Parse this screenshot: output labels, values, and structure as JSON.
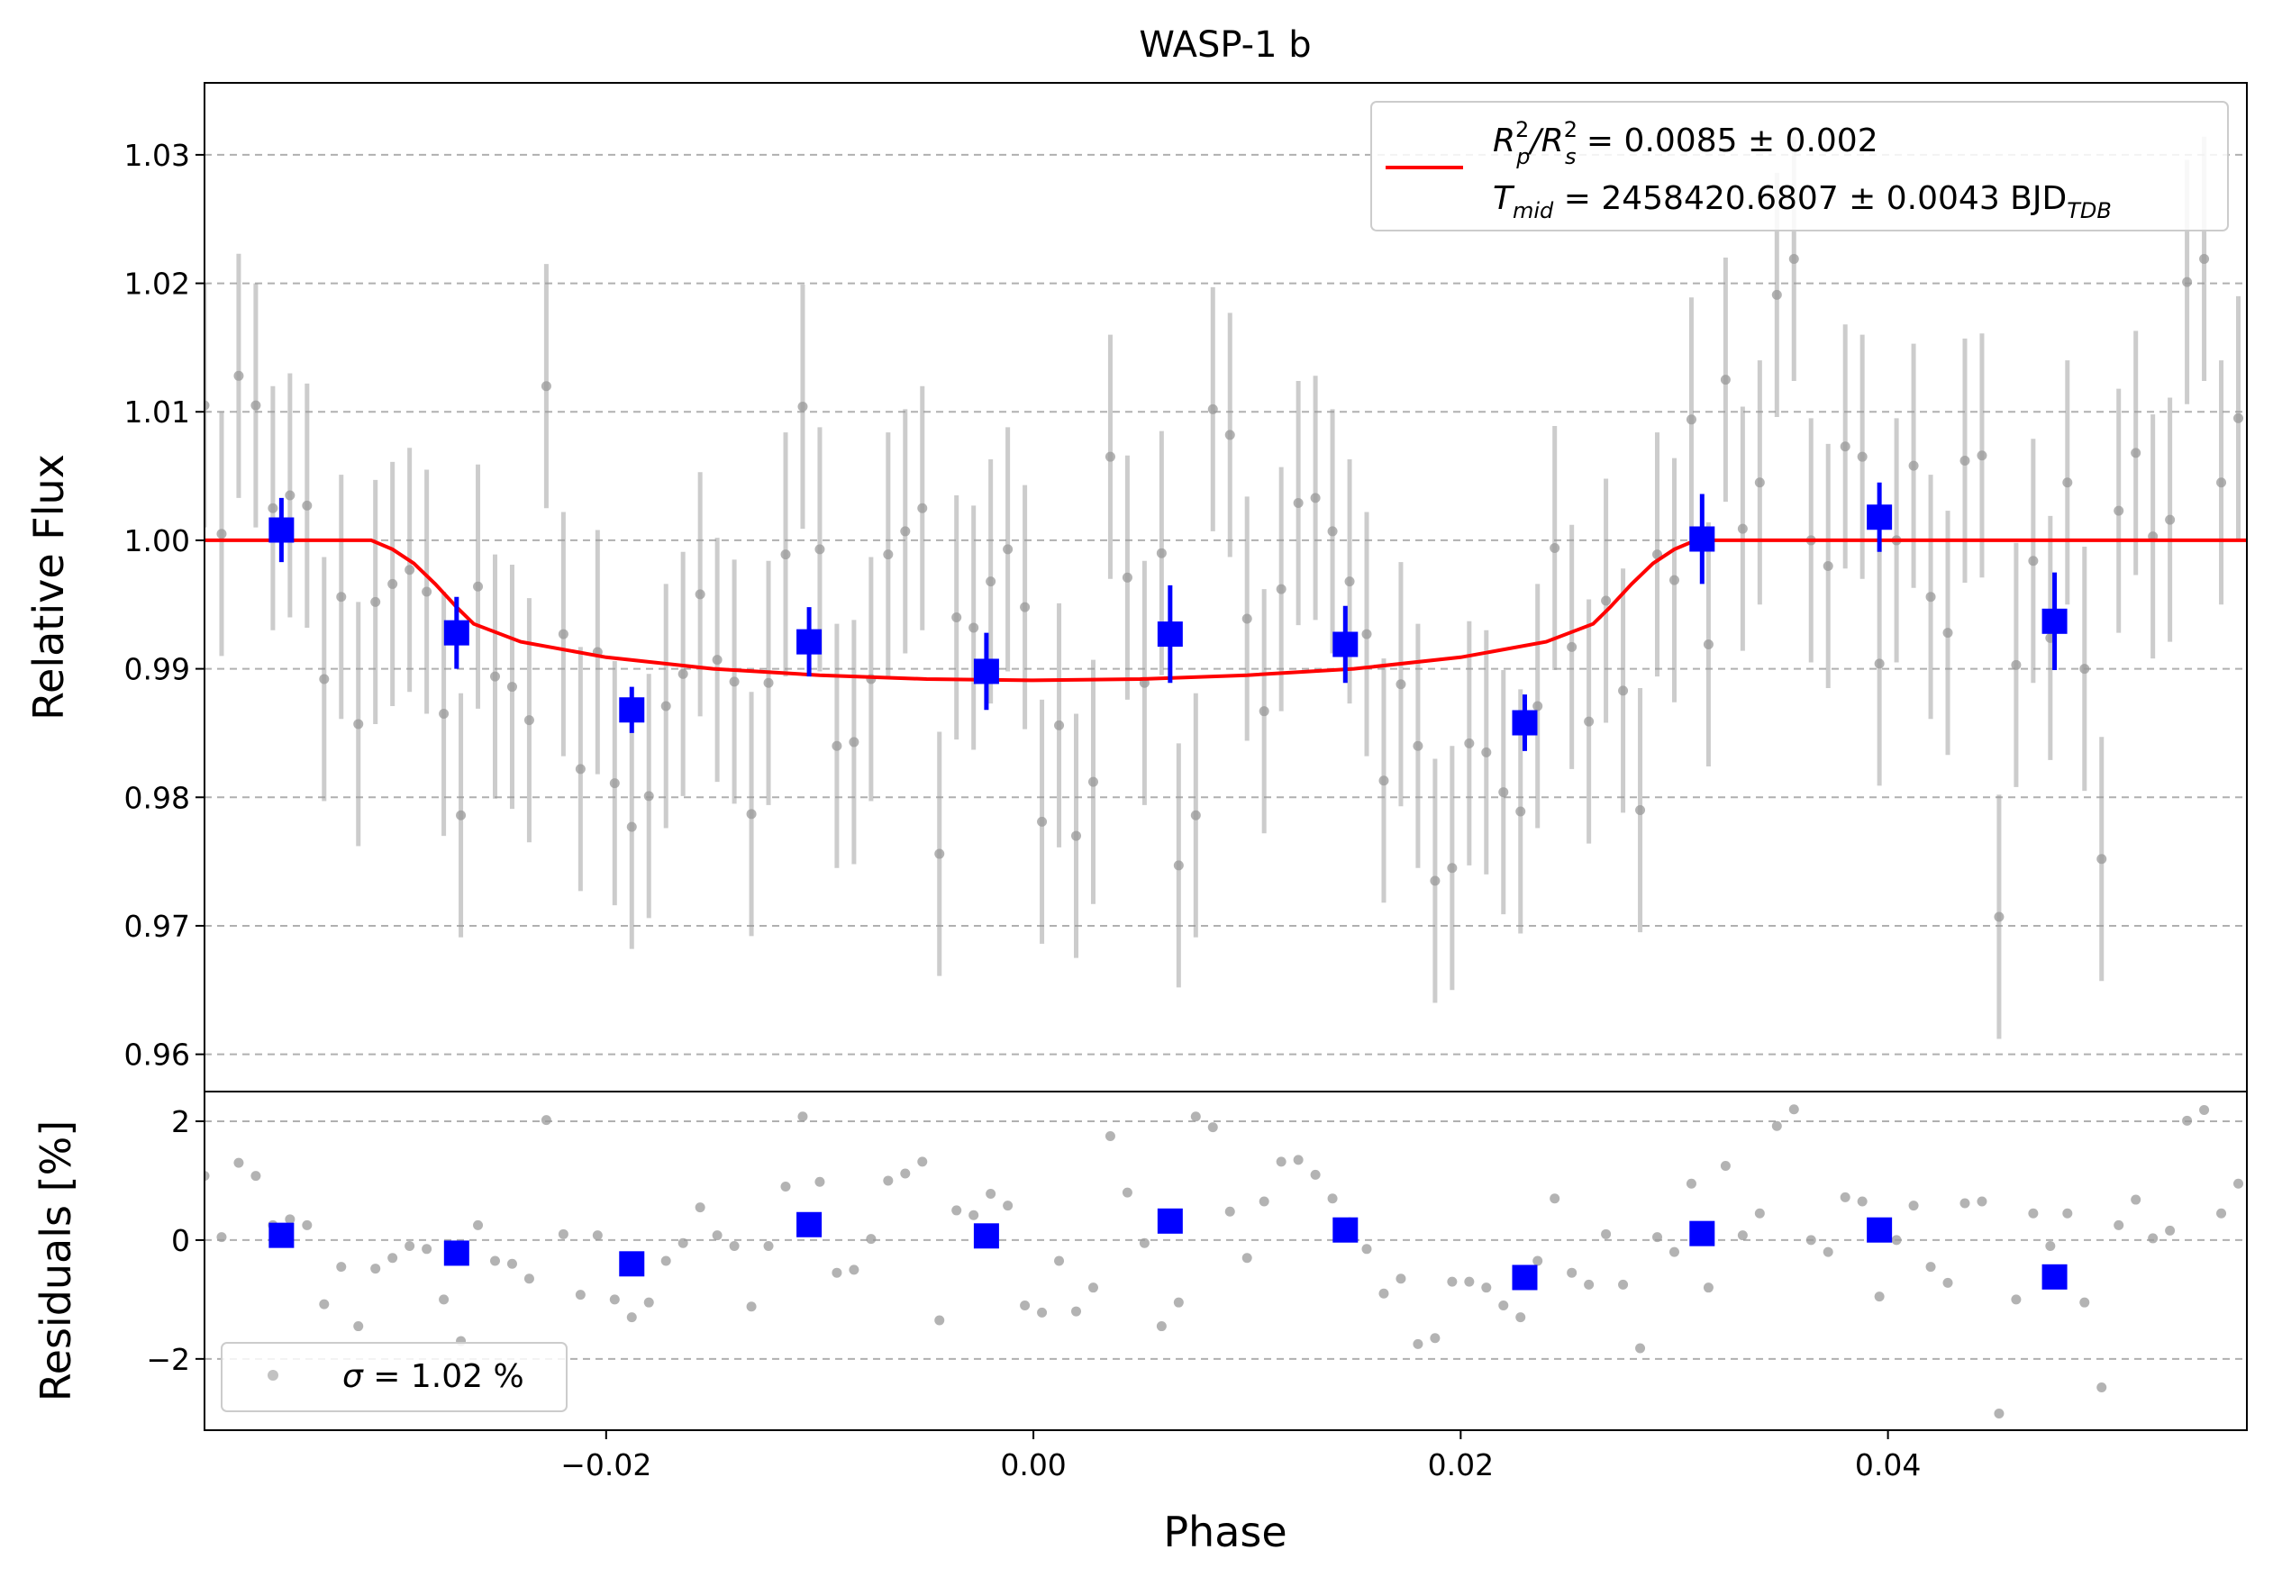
{
  "chart_data": [
    {
      "type": "scatter",
      "title": "WASP-1 b",
      "xlabel": "Phase",
      "ylabel": "Relative Flux",
      "xlim": [
        -0.0388,
        0.0568
      ],
      "ylim": [
        0.9571,
        1.0356
      ],
      "grid": "horizontal dashed",
      "y_ticks": [
        {
          "v": 0.96,
          "label": "0.96"
        },
        {
          "v": 0.97,
          "label": "0.97"
        },
        {
          "v": 0.98,
          "label": "0.98"
        },
        {
          "v": 0.99,
          "label": "0.99"
        },
        {
          "v": 1.0,
          "label": "1.00"
        },
        {
          "v": 1.01,
          "label": "1.01"
        },
        {
          "v": 1.02,
          "label": "1.02"
        },
        {
          "v": 1.03,
          "label": "1.03"
        }
      ],
      "legend": {
        "placement": "upper right",
        "color": "#ff0000",
        "line1": {
          "base": "R",
          "sup1": "2",
          "sub1": "p",
          "slash": "/R",
          "sup2": "2",
          "sub2": "s",
          "rest": " = 0.0085 ± 0.002"
        },
        "line2": {
          "base": "T",
          "sub": "mid",
          "rest": " = 2458420.6807 ± 0.0043 BJD",
          "unit_sub": "TDB"
        }
      },
      "model_curve": {
        "color": "#ff0000",
        "x": [
          -0.0388,
          -0.031,
          -0.03,
          -0.029,
          -0.028,
          -0.027,
          -0.0262,
          -0.024,
          -0.02,
          -0.015,
          -0.01,
          -0.005,
          0.0,
          0.005,
          0.01,
          0.015,
          0.02,
          0.024,
          0.0262,
          0.027,
          0.028,
          0.029,
          0.03,
          0.031,
          0.0568
        ],
        "y": [
          1.0,
          1.0,
          0.9993,
          0.9982,
          0.9966,
          0.9948,
          0.9935,
          0.9921,
          0.9909,
          0.99,
          0.9895,
          0.9892,
          0.9891,
          0.9892,
          0.9895,
          0.99,
          0.9909,
          0.9921,
          0.9935,
          0.9948,
          0.9966,
          0.9982,
          0.9993,
          1.0,
          1.0
        ]
      },
      "raw_points": {
        "color": "#999999",
        "x": [
          -0.0388,
          -0.038,
          -0.0372,
          -0.0364,
          -0.0356,
          -0.0348,
          -0.034,
          -0.0332,
          -0.0324,
          -0.0316,
          -0.0308,
          -0.03,
          -0.0292,
          -0.0284,
          -0.0276,
          -0.0268,
          -0.026,
          -0.0252,
          -0.0244,
          -0.0236,
          -0.0228,
          -0.022,
          -0.0212,
          -0.0204,
          -0.0196,
          -0.0188,
          -0.018,
          -0.0172,
          -0.0164,
          -0.0156,
          -0.0148,
          -0.014,
          -0.0132,
          -0.0124,
          -0.0116,
          -0.0108,
          -0.01,
          -0.0092,
          -0.0084,
          -0.0076,
          -0.0068,
          -0.006,
          -0.0052,
          -0.0044,
          -0.0036,
          -0.0028,
          -0.002,
          -0.0012,
          -0.0004,
          0.0004,
          0.0012,
          0.002,
          0.0028,
          0.0036,
          0.0044,
          0.0052,
          0.006,
          0.0068,
          0.0076,
          0.0084,
          0.0092,
          0.01,
          0.0108,
          0.0116,
          0.0124,
          0.0132,
          0.014,
          0.0148,
          0.0156,
          0.0164,
          0.0172,
          0.018,
          0.0188,
          0.0196,
          0.0204,
          0.0212,
          0.022,
          0.0228,
          0.0236,
          0.0244,
          0.0252,
          0.026,
          0.0268,
          0.0276,
          0.0284,
          0.0292,
          0.03,
          0.0308,
          0.0316,
          0.0324,
          0.0332,
          0.034,
          0.0348,
          0.0356,
          0.0364,
          0.0372,
          0.038,
          0.0388,
          0.0396,
          0.0404,
          0.0412,
          0.042,
          0.0428,
          0.0436,
          0.0444,
          0.0452,
          0.046,
          0.0468,
          0.0476,
          0.0484,
          0.0492,
          0.05,
          0.0508,
          0.0516,
          0.0524,
          0.0532,
          0.054,
          0.0548,
          0.0556,
          0.0564
        ],
        "y": [
          1.0105,
          1.0005,
          1.0128,
          1.0105,
          1.0025,
          1.0035,
          1.0027,
          0.9892,
          0.9956,
          0.9857,
          0.9952,
          0.9966,
          0.9977,
          0.996,
          0.9865,
          0.9786,
          0.9964,
          0.9894,
          0.9886,
          0.986,
          1.012,
          0.9927,
          0.9822,
          0.9913,
          0.9811,
          0.9777,
          0.9801,
          0.9871,
          0.9896,
          0.9958,
          0.9907,
          0.989,
          0.9787,
          0.9889,
          0.9989,
          1.0104,
          0.9993,
          0.984,
          0.9843,
          0.9892,
          0.9989,
          1.0007,
          1.0025,
          0.9756,
          0.994,
          0.9932,
          0.9968,
          0.9993,
          0.9948,
          0.9781,
          0.9856,
          0.977,
          0.9812,
          1.0065,
          0.9971,
          0.9889,
          0.999,
          0.9747,
          0.9786,
          1.0102,
          1.0082,
          0.9939,
          0.9867,
          0.9962,
          1.0029,
          1.0033,
          1.0007,
          0.9968,
          0.9927,
          0.9813,
          0.9888,
          0.984,
          0.9735,
          0.9745,
          0.9842,
          0.9835,
          0.9804,
          0.9789,
          0.9871,
          0.9994,
          0.9917,
          0.9859,
          0.9953,
          0.9883,
          0.979,
          0.9989,
          0.9969,
          1.0094,
          0.9919,
          1.0125,
          1.0009,
          1.0045,
          1.0191,
          1.0219,
          1.0,
          0.998,
          1.0073,
          1.0065,
          0.9904,
          1.0,
          1.0058,
          0.9956,
          0.9928,
          1.0062,
          1.0066,
          0.9707,
          0.9903,
          0.9984,
          0.9924,
          1.0045,
          0.99,
          0.9752,
          1.0023,
          1.0068,
          1.0003,
          1.0016,
          1.0201,
          1.0219,
          1.0045,
          1.0095
        ],
        "err": 0.0095
      },
      "binned_points": {
        "color": "#0000ff",
        "x": [
          -0.0352,
          -0.027,
          -0.0188,
          -0.0105,
          -0.0022,
          0.0064,
          0.0146,
          0.023,
          0.0313,
          0.0396,
          0.0478
        ],
        "y": [
          1.0008,
          0.9928,
          0.9868,
          0.9921,
          0.9898,
          0.9927,
          0.9919,
          0.9858,
          1.0001,
          1.0018,
          0.9937
        ],
        "err": [
          0.0025,
          0.0028,
          0.0018,
          0.0027,
          0.003,
          0.0038,
          0.003,
          0.0022,
          0.0035,
          0.0027,
          0.0038
        ]
      }
    },
    {
      "type": "scatter",
      "xlabel": "Phase",
      "ylabel": "Residuals [%]",
      "xlim": [
        -0.0388,
        0.0568
      ],
      "ylim": [
        -3.2,
        2.5
      ],
      "grid": "horizontal dashed",
      "x_ticks": [
        {
          "v": -0.02,
          "label": "−0.02"
        },
        {
          "v": 0.0,
          "label": "0.00"
        },
        {
          "v": 0.02,
          "label": "0.02"
        },
        {
          "v": 0.04,
          "label": "0.04"
        }
      ],
      "y_ticks": [
        {
          "v": -2,
          "label": "−2"
        },
        {
          "v": 0,
          "label": "0"
        },
        {
          "v": 2,
          "label": "2"
        }
      ],
      "legend": {
        "placement": "lower left",
        "sigma_symbol": "σ",
        "text": " = 1.02 %"
      },
      "raw_points": {
        "color": "#999999",
        "x": [
          -0.0388,
          -0.038,
          -0.0372,
          -0.0364,
          -0.0356,
          -0.0348,
          -0.034,
          -0.0332,
          -0.0324,
          -0.0316,
          -0.0308,
          -0.03,
          -0.0292,
          -0.0284,
          -0.0276,
          -0.0268,
          -0.026,
          -0.0252,
          -0.0244,
          -0.0236,
          -0.0228,
          -0.022,
          -0.0212,
          -0.0204,
          -0.0196,
          -0.0188,
          -0.018,
          -0.0172,
          -0.0164,
          -0.0156,
          -0.0148,
          -0.014,
          -0.0132,
          -0.0124,
          -0.0116,
          -0.0108,
          -0.01,
          -0.0092,
          -0.0084,
          -0.0076,
          -0.0068,
          -0.006,
          -0.0052,
          -0.0044,
          -0.0036,
          -0.0028,
          -0.002,
          -0.0012,
          -0.0004,
          0.0004,
          0.0012,
          0.002,
          0.0028,
          0.0036,
          0.0044,
          0.0052,
          0.006,
          0.0068,
          0.0076,
          0.0084,
          0.0092,
          0.01,
          0.0108,
          0.0116,
          0.0124,
          0.0132,
          0.014,
          0.0148,
          0.0156,
          0.0164,
          0.0172,
          0.018,
          0.0188,
          0.0196,
          0.0204,
          0.0212,
          0.022,
          0.0228,
          0.0236,
          0.0244,
          0.0252,
          0.026,
          0.0268,
          0.0276,
          0.0284,
          0.0292,
          0.03,
          0.0308,
          0.0316,
          0.0324,
          0.0332,
          0.034,
          0.0348,
          0.0356,
          0.0364,
          0.0372,
          0.038,
          0.0388,
          0.0396,
          0.0404,
          0.0412,
          0.042,
          0.0428,
          0.0436,
          0.0444,
          0.0452,
          0.046,
          0.0468,
          0.0476,
          0.0484,
          0.0492,
          0.05,
          0.0508,
          0.0516,
          0.0524,
          0.0532,
          0.054,
          0.0548,
          0.0556,
          0.0564
        ],
        "y": [
          1.08,
          0.05,
          1.3,
          1.08,
          0.25,
          0.35,
          0.25,
          -1.08,
          -0.45,
          -1.45,
          -0.48,
          -0.3,
          -0.1,
          -0.15,
          -1.0,
          -1.7,
          0.25,
          -0.35,
          -0.4,
          -0.65,
          2.02,
          0.1,
          -0.92,
          0.08,
          -1.0,
          -1.3,
          -1.05,
          -0.35,
          -0.05,
          0.55,
          0.08,
          -0.1,
          -1.12,
          -0.1,
          0.9,
          2.08,
          0.98,
          -0.55,
          -0.5,
          0.02,
          1.0,
          1.12,
          1.32,
          -1.35,
          0.5,
          0.42,
          0.78,
          0.58,
          -1.1,
          -1.22,
          -0.35,
          -1.2,
          -0.8,
          1.75,
          0.8,
          -0.05,
          -1.45,
          -1.05,
          2.08,
          1.9,
          0.48,
          -0.3,
          0.65,
          1.32,
          1.35,
          1.1,
          0.7,
          0.3,
          -0.15,
          -0.9,
          -0.65,
          -1.75,
          -1.65,
          -0.7,
          -0.7,
          -0.8,
          -1.1,
          -1.3,
          -0.35,
          0.7,
          -0.55,
          -0.75,
          0.1,
          -0.75,
          -1.82,
          0.05,
          -0.2,
          0.95,
          -0.8,
          1.25,
          0.08,
          0.45,
          1.92,
          2.2,
          0.0,
          -0.2,
          0.72,
          0.65,
          -0.95,
          0.0,
          0.58,
          -0.45,
          -0.72,
          0.62,
          0.65,
          -2.92,
          -1.0,
          0.45,
          -0.1,
          0.45,
          -1.05,
          -2.48,
          0.25,
          0.68,
          0.03,
          0.16,
          2.01,
          2.19,
          0.45,
          0.95
        ]
      },
      "binned_points": {
        "color": "#0000ff",
        "x": [
          -0.0352,
          -0.027,
          -0.0188,
          -0.0105,
          -0.0022,
          0.0064,
          0.0146,
          0.023,
          0.0313,
          0.0396,
          0.0478
        ],
        "y": [
          0.08,
          -0.22,
          -0.4,
          0.26,
          0.07,
          0.32,
          0.17,
          -0.63,
          0.11,
          0.17,
          -0.62
        ]
      }
    }
  ]
}
